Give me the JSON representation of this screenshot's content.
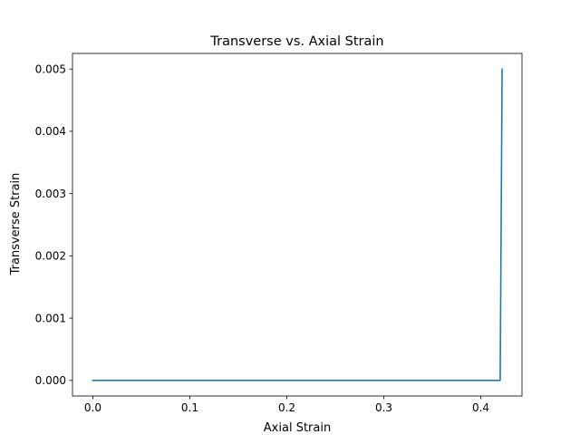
{
  "chart_data": {
    "type": "line",
    "title": "Transverse vs. Axial Strain",
    "xlabel": "Axial Strain",
    "ylabel": "Transverse Strain",
    "xlim": [
      -0.021,
      0.4425
    ],
    "ylim": [
      -0.00025,
      0.00525
    ],
    "xticks": [
      0.0,
      0.1,
      0.2,
      0.3,
      0.4
    ],
    "xtick_labels": [
      "0.0",
      "0.1",
      "0.2",
      "0.3",
      "0.4"
    ],
    "yticks": [
      0.0,
      0.001,
      0.002,
      0.003,
      0.004,
      0.005
    ],
    "ytick_labels": [
      "0.000",
      "0.001",
      "0.002",
      "0.003",
      "0.004",
      "0.005"
    ],
    "grid": false,
    "legend": "none",
    "series": [
      {
        "color": "#1f77b4",
        "x": [
          0.0,
          0.1,
          0.2,
          0.3,
          0.4,
          0.42,
          0.421,
          0.422
        ],
        "y": [
          0.0,
          0.0,
          0.0,
          0.0,
          0.0,
          0.0,
          0.0025,
          0.005
        ]
      }
    ]
  }
}
